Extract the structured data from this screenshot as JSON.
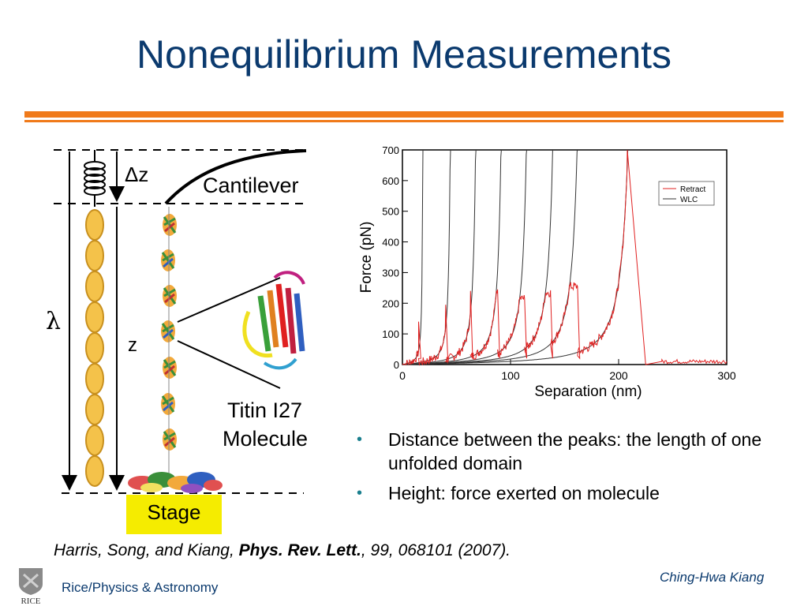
{
  "title": "Nonequilibrium Measurements",
  "colors": {
    "title": "#0b3a6e",
    "rule": "#f07a1a",
    "bullet": "#1a7f8e",
    "retract": "#e02020",
    "wlc": "#333333",
    "stage": "#f5ec00"
  },
  "diagram": {
    "dz_label": "Δz",
    "cantilever_label": "Cantilever",
    "lambda_label": "λ",
    "z_label": "z",
    "molecule_label_1": "Titin I27",
    "molecule_label_2": "Molecule",
    "stage_label": "Stage"
  },
  "chart_data": {
    "type": "line",
    "xlabel": "Separation (nm)",
    "ylabel": "Force (pN)",
    "xlim": [
      0,
      300
    ],
    "ylim": [
      0,
      700
    ],
    "xticks": [
      0,
      100,
      200,
      300
    ],
    "yticks": [
      0,
      100,
      200,
      300,
      400,
      500,
      600,
      700
    ],
    "legend_position": "top-right",
    "series": [
      {
        "name": "Retract",
        "peaks": [
          {
            "start": 0,
            "end": 15,
            "force": 140
          },
          {
            "start": 15,
            "end": 40,
            "force": 195
          },
          {
            "start": 40,
            "end": 63,
            "force": 240
          },
          {
            "start": 63,
            "end": 88,
            "force": 245
          },
          {
            "start": 88,
            "end": 113,
            "force": 215
          },
          {
            "start": 113,
            "end": 137,
            "force": 235
          },
          {
            "start": 137,
            "end": 162,
            "force": 255
          },
          {
            "start": 162,
            "end": 208,
            "force": 700
          }
        ],
        "baseline_range": [
          240,
          300
        ],
        "baseline_force": 10
      },
      {
        "name": "WLC",
        "contour_lengths": [
          20,
          47,
          72,
          97,
          122,
          148,
          172,
          222
        ]
      }
    ]
  },
  "bullets": [
    "Distance between the peaks: the length of one unfolded domain",
    "Height: force exerted on molecule"
  ],
  "citation": {
    "authors": "Harris, Song, and Kiang, ",
    "journal": "Phys. Rev. Lett.",
    "rest": ", 99, 068101 (2007)."
  },
  "footer": {
    "left": "Rice/Physics & Astronomy",
    "right": "Ching-Hwa Kiang",
    "logo_text": "RICE"
  }
}
